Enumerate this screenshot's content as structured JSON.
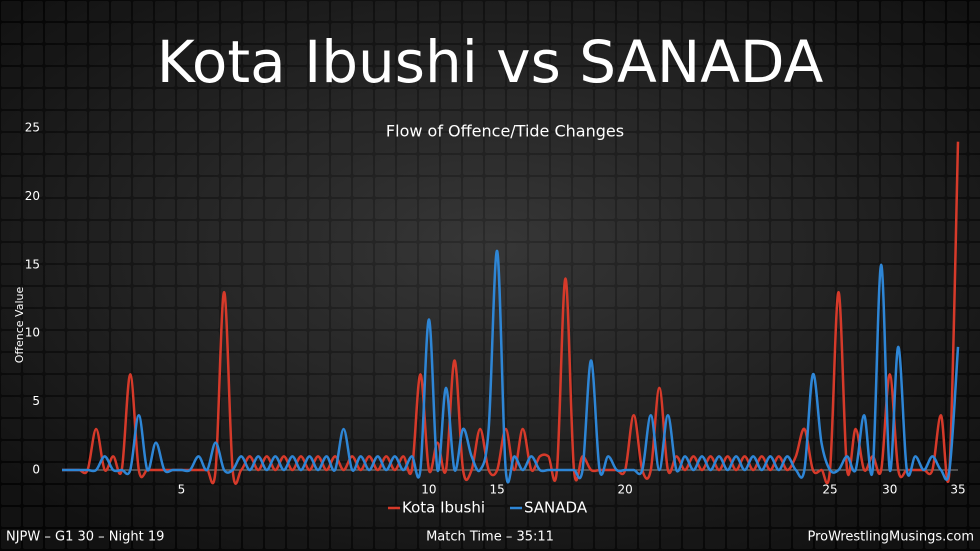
{
  "chart_data": {
    "type": "line",
    "title": "Kota Ibushi vs SANADA",
    "subtitle": "Flow of Offence/Tide Changes",
    "y_label": "Offence Value",
    "footer_left": "NJPW – G1 30 – Night 19",
    "footer_center": "Match Time – 35:11",
    "footer_right": "ProWrestlingMusings.com",
    "categories": [
      null,
      null,
      null,
      null,
      null,
      null,
      null,
      null,
      null,
      null,
      null,
      null,
      null,
      null,
      5,
      null,
      null,
      null,
      null,
      null,
      null,
      null,
      null,
      null,
      null,
      null,
      null,
      null,
      null,
      null,
      null,
      null,
      null,
      null,
      null,
      null,
      null,
      null,
      null,
      null,
      null,
      null,
      null,
      10,
      null,
      null,
      null,
      null,
      null,
      null,
      null,
      15,
      null,
      null,
      null,
      null,
      null,
      null,
      null,
      null,
      null,
      null,
      null,
      null,
      null,
      null,
      20,
      null,
      null,
      null,
      null,
      null,
      null,
      null,
      null,
      null,
      null,
      null,
      null,
      null,
      null,
      null,
      null,
      null,
      null,
      null,
      null,
      null,
      null,
      null,
      25,
      null,
      null,
      null,
      null,
      null,
      null,
      30,
      null,
      null,
      null,
      null,
      null,
      null,
      null,
      35
    ],
    "series": [
      {
        "name": "Kota Ibushi",
        "color": "#d63a2a",
        "values": [
          0,
          0,
          0,
          0,
          3,
          0,
          1,
          0,
          7,
          0,
          0,
          0,
          0,
          0,
          0,
          0,
          0,
          0,
          0,
          13,
          0,
          0,
          1,
          0,
          1,
          0,
          1,
          0,
          1,
          0,
          1,
          0,
          1,
          0,
          1,
          0,
          1,
          0,
          1,
          0,
          1,
          0,
          7,
          0,
          2,
          0,
          8,
          0,
          0,
          3,
          0,
          0,
          3,
          0,
          3,
          0,
          1,
          1,
          0,
          14,
          0,
          1,
          0,
          0,
          0,
          0,
          0,
          4,
          0,
          0,
          6,
          0,
          1,
          0,
          1,
          0,
          1,
          0,
          1,
          0,
          1,
          0,
          1,
          0,
          1,
          0,
          1,
          3,
          0,
          0,
          0,
          13,
          0,
          3,
          0,
          1,
          0,
          7,
          0,
          0,
          0,
          0,
          0,
          4,
          0,
          24
        ]
      },
      {
        "name": "SANADA",
        "color": "#2e86d6",
        "values": [
          0,
          0,
          0,
          0,
          0,
          1,
          0,
          0,
          0,
          4,
          0,
          2,
          0,
          0,
          0,
          0,
          1,
          0,
          2,
          0,
          0,
          1,
          0,
          1,
          0,
          1,
          0,
          1,
          0,
          1,
          0,
          1,
          0,
          3,
          0,
          1,
          0,
          1,
          0,
          1,
          0,
          1,
          0,
          11,
          0,
          6,
          0,
          3,
          1,
          0,
          3,
          16,
          0,
          1,
          0,
          1,
          0,
          0,
          0,
          0,
          0,
          0,
          8,
          0,
          1,
          0,
          0,
          0,
          0,
          4,
          0,
          4,
          0,
          1,
          0,
          1,
          0,
          1,
          0,
          1,
          0,
          1,
          0,
          1,
          0,
          1,
          0,
          0,
          7,
          2,
          0,
          0,
          1,
          0,
          4,
          0,
          15,
          0,
          9,
          0,
          1,
          0,
          1,
          0,
          0,
          9
        ]
      }
    ],
    "ylim": [
      0,
      25
    ],
    "yticks": [
      0,
      5,
      10,
      15,
      20,
      25
    ],
    "grid": false,
    "legend": "bottom"
  }
}
